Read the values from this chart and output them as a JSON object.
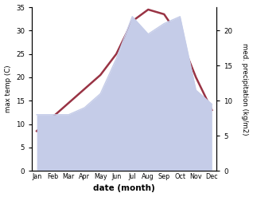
{
  "months": [
    "Jan",
    "Feb",
    "Mar",
    "Apr",
    "May",
    "Jun",
    "Jul",
    "Aug",
    "Sep",
    "Oct",
    "Nov",
    "Dec"
  ],
  "temp": [
    8.5,
    11.5,
    14.5,
    17.5,
    20.5,
    25.0,
    32.0,
    34.5,
    33.5,
    28.5,
    20.0,
    13.0
  ],
  "precip": [
    8.0,
    8.0,
    8.0,
    9.0,
    11.0,
    16.0,
    22.0,
    19.5,
    21.0,
    22.0,
    11.5,
    9.5
  ],
  "temp_color": "#993344",
  "precip_fill_color": "#c5cce8",
  "precip_line_color": "#c5cce8",
  "xlabel": "date (month)",
  "ylabel_left": "max temp (C)",
  "ylabel_right": "med. precipitation (kg/m2)",
  "ylim_left": [
    0,
    35
  ],
  "ylim_right": [
    0,
    23.33
  ],
  "yticks_left": [
    0,
    5,
    10,
    15,
    20,
    25,
    30,
    35
  ],
  "yticks_right": [
    0,
    5,
    10,
    15,
    20
  ],
  "background_color": "#ffffff"
}
